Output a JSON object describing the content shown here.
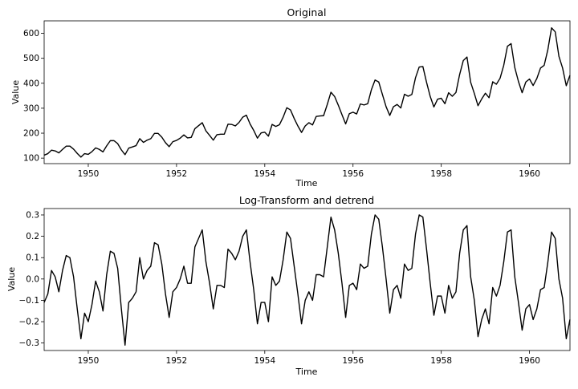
{
  "chart_data": [
    {
      "type": "line",
      "title": "Original",
      "xlabel": "Time",
      "ylabel": "Value",
      "xlim": [
        1949.0,
        1960.917
      ],
      "ylim": [
        78,
        650
      ],
      "xticks": [
        1950,
        1952,
        1954,
        1956,
        1958,
        1960
      ],
      "yticks": [
        100,
        200,
        300,
        400,
        500,
        600
      ],
      "grid": false,
      "x_start": 1949.0,
      "x_step": 0.08333,
      "values": [
        112,
        118,
        132,
        129,
        121,
        135,
        148,
        148,
        136,
        119,
        104,
        118,
        115,
        126,
        141,
        135,
        125,
        149,
        170,
        170,
        158,
        133,
        114,
        140,
        145,
        150,
        178,
        163,
        172,
        178,
        199,
        199,
        184,
        162,
        146,
        166,
        171,
        180,
        193,
        181,
        183,
        218,
        230,
        242,
        209,
        191,
        172,
        194,
        196,
        196,
        236,
        235,
        229,
        243,
        264,
        272,
        237,
        211,
        180,
        201,
        204,
        188,
        235,
        227,
        234,
        264,
        302,
        293,
        259,
        229,
        203,
        229,
        242,
        233,
        267,
        269,
        270,
        315,
        364,
        347,
        312,
        274,
        237,
        278,
        284,
        277,
        317,
        313,
        318,
        374,
        413,
        405,
        355,
        306,
        271,
        306,
        315,
        301,
        356,
        348,
        355,
        422,
        465,
        467,
        404,
        347,
        305,
        336,
        340,
        318,
        362,
        348,
        363,
        435,
        491,
        505,
        404,
        359,
        310,
        337,
        360,
        342,
        406,
        396,
        420,
        472,
        548,
        559,
        463,
        407,
        362,
        405,
        417,
        391,
        419,
        461,
        472,
        535,
        622,
        606,
        508,
        461,
        390,
        432
      ]
    },
    {
      "type": "line",
      "title": "Log-Transform and detrend",
      "xlabel": "Time",
      "ylabel": "Value",
      "xlim": [
        1949.0,
        1960.917
      ],
      "ylim": [
        -0.335,
        0.33
      ],
      "xticks": [
        1950,
        1952,
        1954,
        1956,
        1958,
        1960
      ],
      "yticks": [
        -0.3,
        -0.2,
        -0.1,
        0.0,
        0.1,
        0.2,
        0.3
      ],
      "grid": false,
      "x_start": 1949.0,
      "x_step": 0.08333,
      "values": [
        -0.11,
        -0.07,
        0.04,
        0.01,
        -0.06,
        0.04,
        0.11,
        0.1,
        0.01,
        -0.14,
        -0.28,
        -0.16,
        -0.2,
        -0.12,
        -0.01,
        -0.06,
        -0.15,
        0.02,
        0.13,
        0.12,
        0.05,
        -0.14,
        -0.31,
        -0.11,
        -0.09,
        -0.06,
        0.1,
        0.0,
        0.04,
        0.06,
        0.17,
        0.16,
        0.07,
        -0.07,
        -0.18,
        -0.06,
        -0.04,
        0.0,
        0.06,
        -0.02,
        -0.02,
        0.15,
        0.19,
        0.23,
        0.08,
        -0.02,
        -0.14,
        -0.03,
        -0.03,
        -0.04,
        0.14,
        0.12,
        0.09,
        0.13,
        0.2,
        0.23,
        0.08,
        -0.05,
        -0.21,
        -0.11,
        -0.11,
        -0.2,
        0.01,
        -0.03,
        -0.01,
        0.09,
        0.22,
        0.19,
        0.06,
        -0.07,
        -0.21,
        -0.1,
        -0.06,
        -0.1,
        0.02,
        0.02,
        0.01,
        0.15,
        0.29,
        0.23,
        0.12,
        -0.02,
        -0.18,
        -0.03,
        -0.02,
        -0.05,
        0.07,
        0.05,
        0.06,
        0.21,
        0.3,
        0.28,
        0.15,
        0.0,
        -0.16,
        -0.05,
        -0.03,
        -0.09,
        0.07,
        0.04,
        0.05,
        0.21,
        0.3,
        0.29,
        0.14,
        -0.02,
        -0.17,
        -0.08,
        -0.08,
        -0.16,
        -0.03,
        -0.09,
        -0.06,
        0.12,
        0.23,
        0.25,
        0.01,
        -0.1,
        -0.27,
        -0.19,
        -0.14,
        -0.21,
        -0.04,
        -0.08,
        -0.03,
        0.08,
        0.22,
        0.23,
        0.01,
        -0.11,
        -0.24,
        -0.14,
        -0.12,
        -0.19,
        -0.14,
        -0.05,
        -0.04,
        0.08,
        0.22,
        0.19,
        0.0,
        -0.09,
        -0.28,
        -0.19
      ]
    }
  ]
}
